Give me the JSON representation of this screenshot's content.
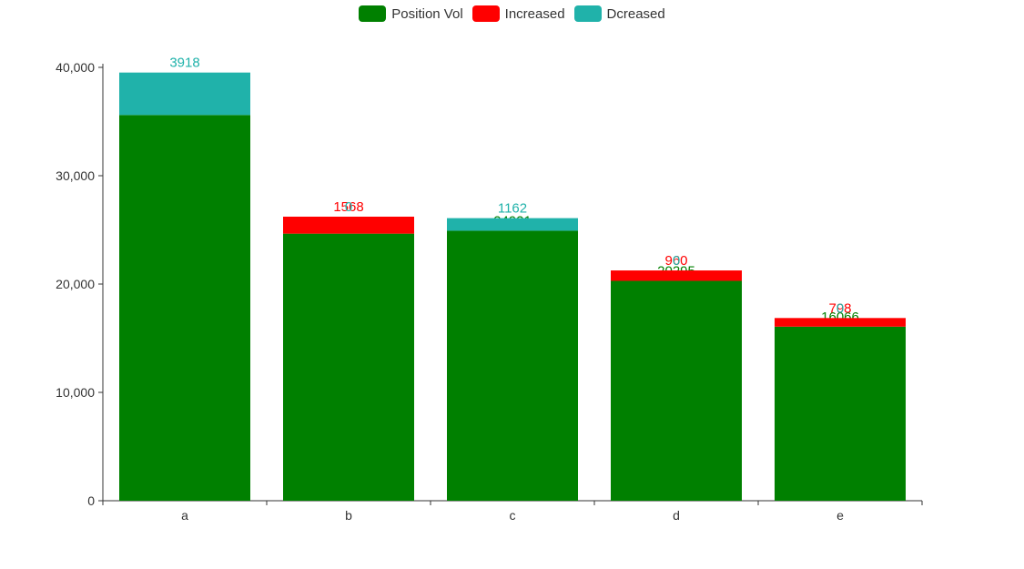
{
  "chart_data": {
    "type": "bar",
    "stacked": true,
    "categories": [
      "a",
      "b",
      "c",
      "d",
      "e"
    ],
    "series": [
      {
        "name": "Position Vol",
        "color": "#008000",
        "values": [
          35604,
          24651,
          24921,
          20295,
          16066
        ],
        "labels": [
          "",
          "24651",
          "24921",
          "20295",
          "16066"
        ]
      },
      {
        "name": "Increased",
        "color": "#ff0000",
        "values": [
          0,
          1568,
          0,
          960,
          798
        ],
        "labels": [
          "",
          "1568",
          "",
          "960",
          "798"
        ]
      },
      {
        "name": "Dcreased",
        "color": "#20b2aa",
        "values": [
          3918,
          0,
          1162,
          0,
          0
        ],
        "labels": [
          "3918",
          "0",
          "1162",
          "0",
          "0"
        ]
      }
    ],
    "y_ticks": [
      "0",
      "10,000",
      "20,000",
      "30,000",
      "40,000"
    ],
    "ylim": [
      0,
      40000
    ],
    "legend_position": "top-center"
  }
}
